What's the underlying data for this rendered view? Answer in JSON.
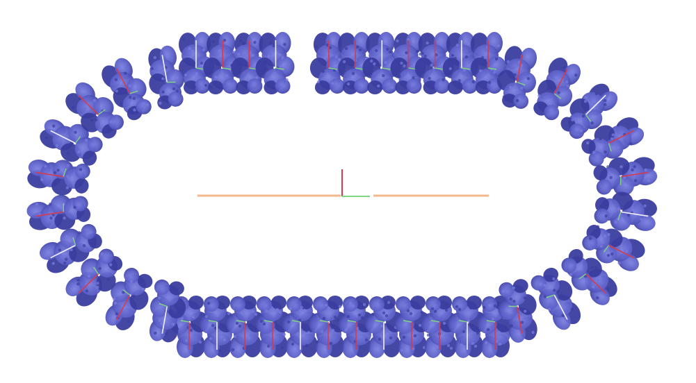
{
  "image": {
    "subject": "protein-ring",
    "subunit_count": 44,
    "ring_gap": true,
    "colors": {
      "background": "#ffffff",
      "protein": "#5b5fc7",
      "protein_dark": "#3a3d9e",
      "protein_light": "#7a7ee0",
      "axis_long": "#f3b98c",
      "axis_red": "#d93a4a",
      "axis_green": "#7ed67e",
      "axis_white": "#f4f4f4"
    }
  }
}
